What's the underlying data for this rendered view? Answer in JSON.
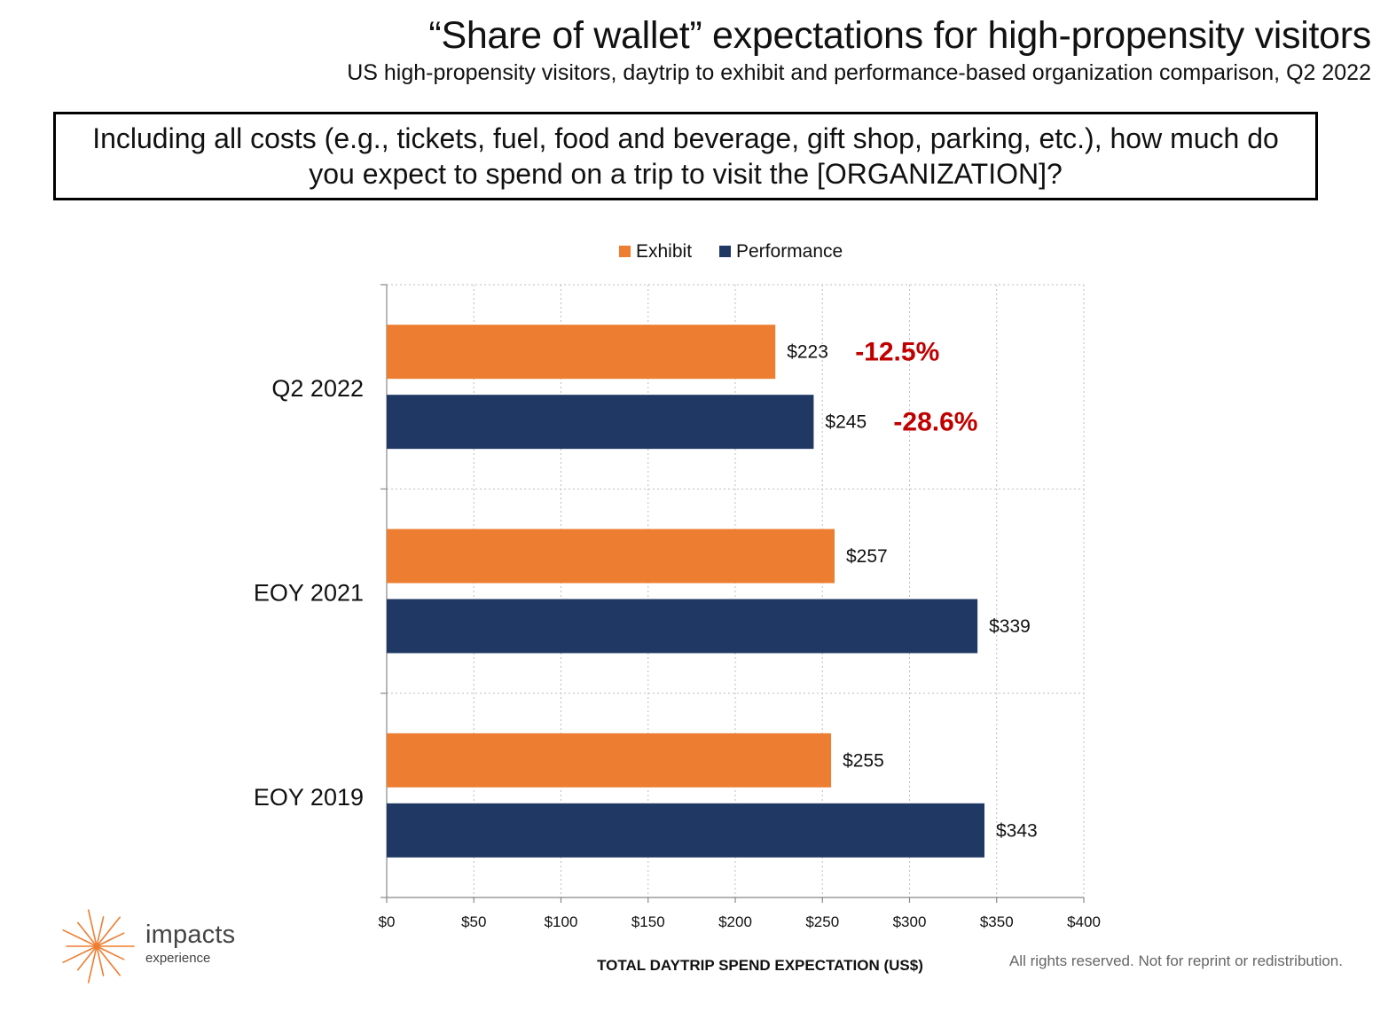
{
  "header": {
    "title": "“Share of wallet” expectations for high-propensity visitors",
    "subtitle": "US high-propensity visitors, daytrip to exhibit and performance-based organization comparison, Q2 2022",
    "question": "Including all costs (e.g., tickets, fuel, food and beverage, gift shop, parking, etc.), how much do you expect to spend on a trip to visit the [ORGANIZATION]?"
  },
  "chart_data": {
    "type": "bar",
    "orientation": "horizontal",
    "categories": [
      "Q2 2022",
      "EOY 2021",
      "EOY 2019"
    ],
    "series": [
      {
        "name": "Exhibit",
        "values": [
          223,
          257,
          255
        ],
        "color": "#ED7D31",
        "value_labels": [
          "$223",
          "$257",
          "$255"
        ]
      },
      {
        "name": "Performance",
        "values": [
          245,
          339,
          343
        ],
        "color": "#203864",
        "value_labels": [
          "$245",
          "$339",
          "$343"
        ]
      }
    ],
    "xlabel": "TOTAL DAYTRIP SPEND EXPECTATION (US$)",
    "xlim": [
      0,
      400
    ],
    "xticks": [
      0,
      50,
      100,
      150,
      200,
      250,
      300,
      350,
      400
    ],
    "xtick_labels": [
      "$0",
      "$50",
      "$100",
      "$150",
      "$200",
      "$250",
      "$300",
      "$350",
      "$400"
    ],
    "grid": true,
    "legend_position": "top",
    "annotations": [
      {
        "category": "Q2 2022",
        "series": "Exhibit",
        "text": "-12.5%",
        "color": "#C00000"
      },
      {
        "category": "Q2 2022",
        "series": "Performance",
        "text": "-28.6%",
        "color": "#C00000"
      }
    ]
  },
  "footer": {
    "rights": "All rights reserved. Not for reprint or redistribution.",
    "logo_main": "impacts",
    "logo_sub": "experience",
    "logo_icon": "starburst-icon",
    "logo_color": "#ED7D31"
  }
}
